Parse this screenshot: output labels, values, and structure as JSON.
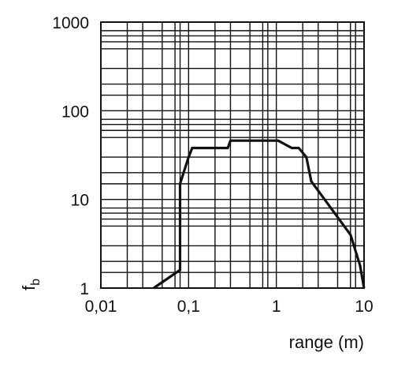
{
  "chart_data": {
    "type": "line",
    "title": "",
    "xlabel": "range (m)",
    "ylabel_main": "f",
    "ylabel_sub": "b",
    "xscale": "log",
    "yscale": "log",
    "xlim": [
      0.01,
      10
    ],
    "ylim": [
      1,
      1000
    ],
    "grid": true,
    "x_ticks": [
      {
        "value": 0.01,
        "label": "0,01"
      },
      {
        "value": 0.1,
        "label": "0,1"
      },
      {
        "value": 1,
        "label": "1"
      },
      {
        "value": 10,
        "label": "10"
      }
    ],
    "y_ticks": [
      {
        "value": 1,
        "label": "1"
      },
      {
        "value": 10,
        "label": "10"
      },
      {
        "value": 100,
        "label": "100"
      },
      {
        "value": 1000,
        "label": "1000"
      }
    ],
    "x_grid": [
      0.01,
      0.02,
      0.03,
      0.05,
      0.07,
      0.08,
      0.1,
      0.2,
      0.3,
      0.5,
      0.7,
      0.8,
      1,
      2,
      3,
      5,
      7,
      8,
      10
    ],
    "y_grid": [
      1,
      1.5,
      2,
      3,
      5,
      6,
      7,
      8,
      10,
      15,
      20,
      30,
      50,
      60,
      70,
      80,
      100,
      150,
      200,
      300,
      500,
      600,
      700,
      800,
      1000
    ],
    "series": [
      {
        "color": "#111111",
        "points": [
          [
            0.04,
            1.0
          ],
          [
            0.08,
            1.6
          ],
          [
            0.08,
            15
          ],
          [
            0.1,
            30
          ],
          [
            0.11,
            38
          ],
          [
            0.28,
            38
          ],
          [
            0.3,
            46
          ],
          [
            1.05,
            46
          ],
          [
            1.5,
            38
          ],
          [
            1.8,
            38
          ],
          [
            2.2,
            30
          ],
          [
            2.5,
            16
          ],
          [
            7.0,
            4.0
          ],
          [
            9.0,
            1.8
          ],
          [
            10.0,
            1.0
          ]
        ]
      }
    ]
  }
}
